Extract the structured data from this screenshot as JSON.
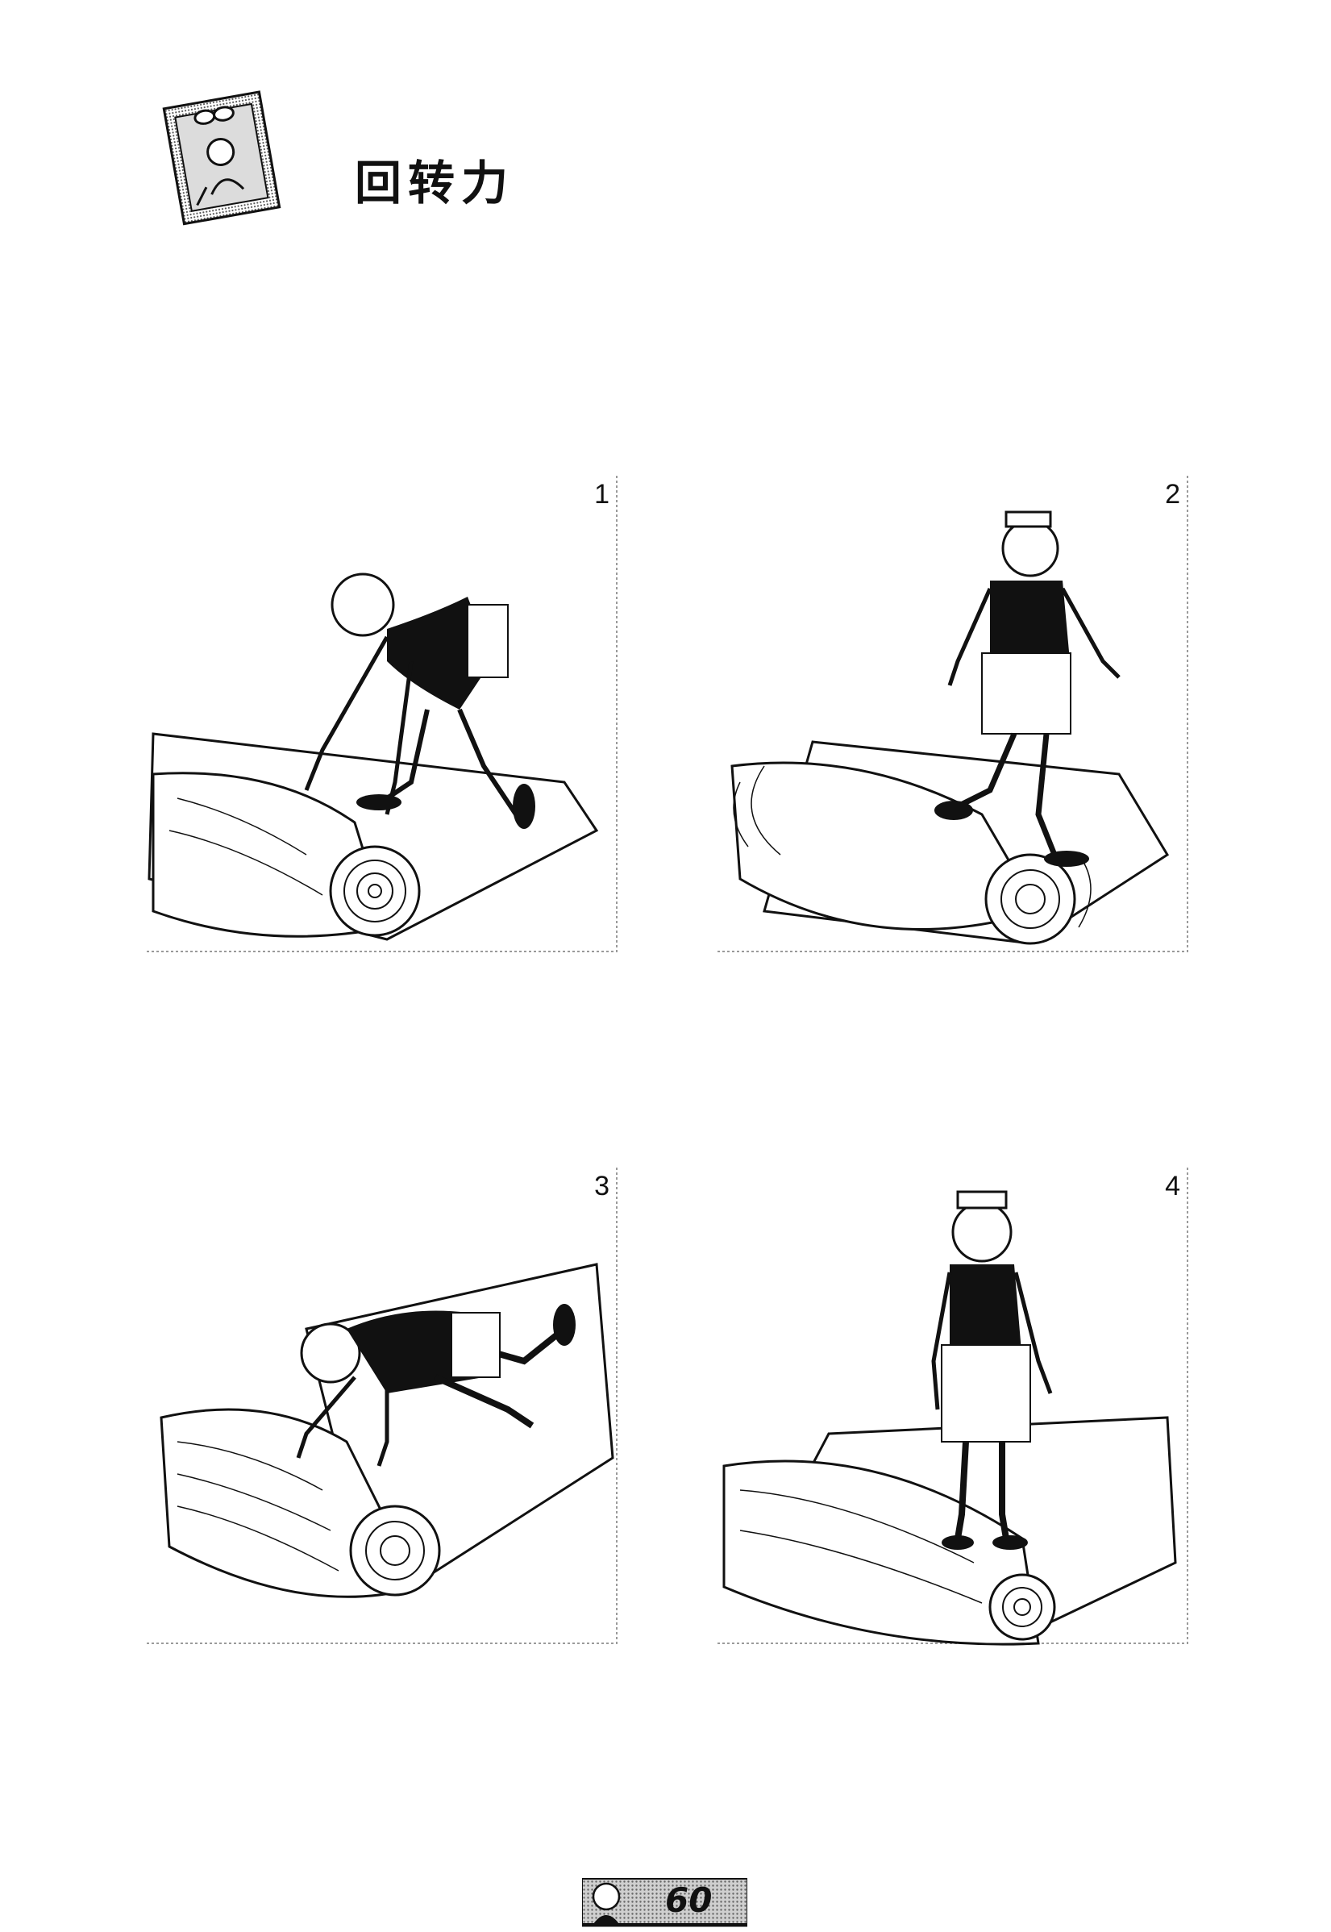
{
  "header": {
    "title": "回转力",
    "icon": "sticky-note-cartoon-icon"
  },
  "panels": [
    {
      "number": "1",
      "illustration": "man-bending-over-carpet-roll"
    },
    {
      "number": "2",
      "illustration": "man-stepping-on-carpet-roll"
    },
    {
      "number": "3",
      "illustration": "man-pushing-carpet-roll"
    },
    {
      "number": "4",
      "illustration": "man-standing-on-carpet-roll"
    }
  ],
  "footer": {
    "page_number": "60",
    "icon": "cartoon-face-icon"
  },
  "colors": {
    "ink": "#111111",
    "paper": "#ffffff",
    "frame": "#9a9a9a"
  }
}
